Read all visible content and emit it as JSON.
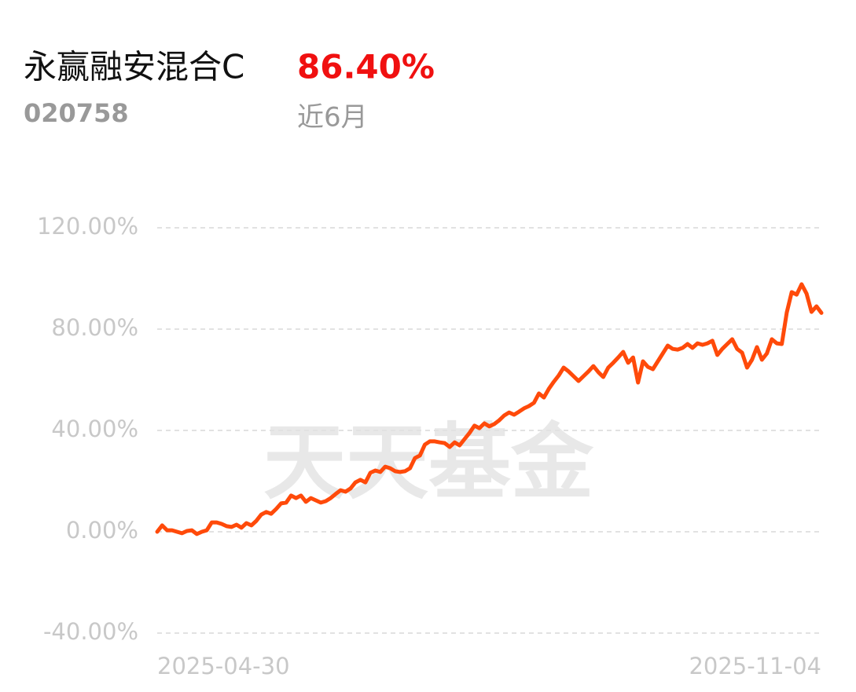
{
  "chart_data": {
    "type": "line",
    "title": "永赢融安混合C",
    "subtitle": "020758",
    "return_label": "86.40%",
    "period_label": "近6月",
    "watermark": "天天基金",
    "color": "#ff4a0a",
    "categories": [
      "2025-04-30",
      null,
      null,
      null,
      null,
      null,
      null,
      null,
      null,
      null,
      null,
      null,
      null,
      null,
      null,
      null,
      null,
      null,
      null,
      null,
      null,
      null,
      null,
      null,
      null,
      null,
      null,
      null,
      null,
      null,
      null,
      null,
      null,
      null,
      null,
      null,
      null,
      null,
      null,
      null,
      null,
      null,
      null,
      null,
      null,
      null,
      null,
      null,
      null,
      null,
      null,
      null,
      null,
      null,
      null,
      null,
      null,
      null,
      null,
      null,
      null,
      null,
      null,
      null,
      null,
      null,
      null,
      null,
      null,
      null,
      null,
      null,
      null,
      null,
      null,
      null,
      null,
      null,
      null,
      null,
      null,
      null,
      null,
      null,
      null,
      null,
      null,
      null,
      null,
      null,
      null,
      null,
      null,
      null,
      null,
      null,
      null,
      null,
      null,
      null,
      null,
      null,
      null,
      null,
      null,
      null,
      null,
      null,
      null,
      null,
      null,
      null,
      null,
      null,
      null,
      null,
      null,
      null,
      null,
      null,
      null,
      null,
      null,
      null,
      null,
      null,
      null,
      null,
      null,
      null,
      null,
      null,
      null,
      null,
      "2025-11-04"
    ],
    "values": [
      0,
      2.5,
      0.6,
      0.6,
      0,
      -0.6,
      0.3,
      0.6,
      -0.9,
      0,
      0.6,
      3.7,
      3.7,
      3.1,
      2.2,
      1.9,
      2.8,
      1.6,
      3.4,
      2.5,
      4.3,
      6.8,
      7.8,
      7.1,
      9.0,
      11.2,
      11.5,
      14.3,
      13.3,
      14.3,
      11.8,
      13.3,
      12.4,
      11.5,
      12.1,
      13.3,
      14.9,
      16.4,
      15.8,
      17.1,
      19.5,
      20.5,
      19.5,
      23.3,
      24.2,
      23.6,
      25.7,
      25.1,
      23.9,
      23.6,
      23.9,
      25.1,
      29.1,
      30.1,
      34.4,
      35.7,
      35.7,
      35.3,
      35.0,
      33.5,
      35.3,
      34.1,
      36.6,
      39.0,
      41.9,
      40.9,
      42.8,
      41.6,
      42.5,
      44.0,
      45.9,
      47.1,
      46.2,
      47.4,
      48.7,
      49.6,
      50.9,
      54.6,
      53.0,
      56.4,
      59.2,
      61.7,
      64.8,
      63.3,
      61.4,
      59.5,
      61.4,
      63.3,
      65.4,
      63.0,
      61.1,
      64.8,
      66.7,
      68.8,
      71.0,
      66.7,
      68.8,
      58.9,
      67.3,
      65.1,
      64.2,
      67.3,
      70.4,
      73.5,
      72.2,
      71.9,
      72.6,
      74.1,
      72.6,
      74.4,
      73.8,
      74.4,
      75.4,
      69.8,
      72.2,
      74.1,
      76.0,
      72.2,
      70.7,
      64.8,
      67.9,
      72.9,
      67.9,
      70.4,
      76.0,
      74.4,
      74.1,
      86.5,
      94.6,
      93.6,
      97.7,
      94.0,
      86.8,
      89.0,
      86.4
    ],
    "ylim": [
      -40,
      120
    ],
    "yticks": [
      {
        "value": -40,
        "label": "-40.00%"
      },
      {
        "value": 0,
        "label": "0.00%"
      },
      {
        "value": 40,
        "label": "40.00%"
      },
      {
        "value": 80,
        "label": "80.00%"
      },
      {
        "value": 120,
        "label": "120.00%"
      }
    ],
    "grid": true
  }
}
